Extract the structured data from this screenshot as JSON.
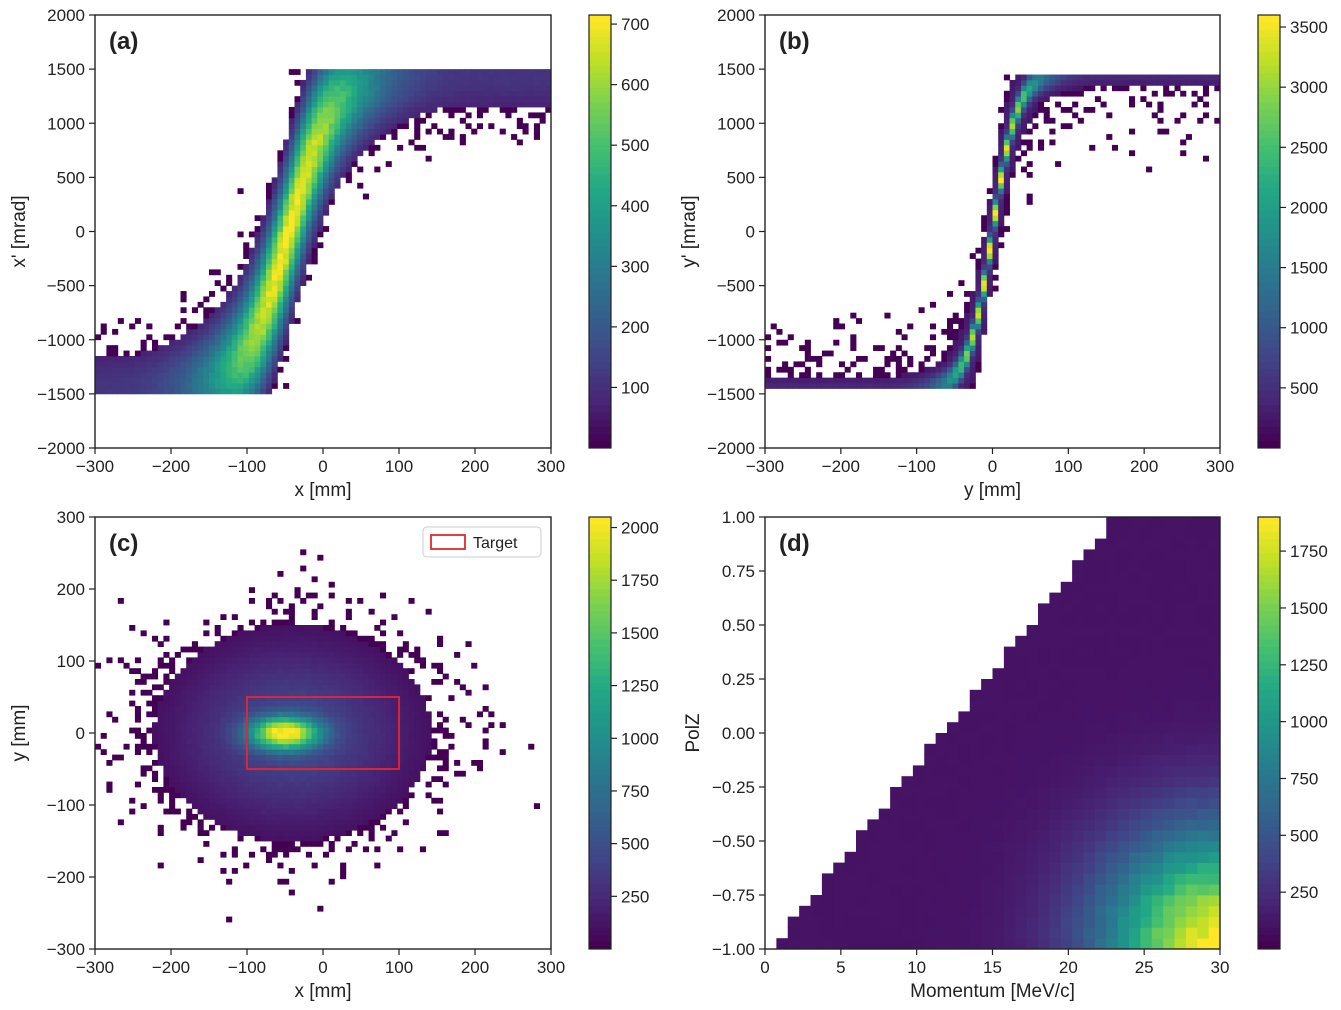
{
  "chart_data": [
    {
      "panel_label": "(a)",
      "type": "heatmap",
      "xlabel": "x [mm]",
      "ylabel": "x' [mrad]",
      "xlim": [
        -300,
        300
      ],
      "ylim": [
        -2000,
        2000
      ],
      "xticks": [
        -300,
        -200,
        -100,
        0,
        100,
        200,
        300
      ],
      "yticks": [
        -2000,
        -1500,
        -1000,
        -500,
        0,
        500,
        1000,
        1500,
        2000
      ],
      "xtick_labels": [
        "−300",
        "−200",
        "−100",
        "0",
        "100",
        "200",
        "300"
      ],
      "ytick_labels": [
        "−2000",
        "−1500",
        "−1000",
        "−500",
        "0",
        "500",
        "1000",
        "1500",
        "2000"
      ],
      "colorbar": {
        "min": 0,
        "max": 715,
        "ticks": [
          100,
          200,
          300,
          400,
          500,
          600,
          700
        ],
        "tick_labels": [
          "100",
          "200",
          "300",
          "400",
          "500",
          "600",
          "700"
        ]
      },
      "distribution": {
        "shape": "s-curve",
        "center": [
          -45,
          0
        ],
        "peak_count": 715,
        "x_sigma_mm": 45,
        "y_range_mrad": [
          -1450,
          1450
        ]
      }
    },
    {
      "panel_label": "(b)",
      "type": "heatmap",
      "xlabel": "y [mm]",
      "ylabel": "y' [mrad]",
      "xlim": [
        -300,
        300
      ],
      "ylim": [
        -2000,
        2000
      ],
      "xticks": [
        -300,
        -200,
        -100,
        0,
        100,
        200,
        300
      ],
      "yticks": [
        -2000,
        -1500,
        -1000,
        -500,
        0,
        500,
        1000,
        1500,
        2000
      ],
      "xtick_labels": [
        "−300",
        "−200",
        "−100",
        "0",
        "100",
        "200",
        "300"
      ],
      "ytick_labels": [
        "−2000",
        "−1500",
        "−1000",
        "−500",
        "0",
        "500",
        "1000",
        "1500",
        "2000"
      ],
      "colorbar": {
        "min": 0,
        "max": 3600,
        "ticks": [
          500,
          1000,
          1500,
          2000,
          2500,
          3000,
          3500
        ],
        "tick_labels": [
          "500",
          "1000",
          "1500",
          "2000",
          "2500",
          "3000",
          "3500"
        ]
      },
      "distribution": {
        "shape": "narrow s-curve",
        "center": [
          0,
          0
        ],
        "peak_count": 3600,
        "y_range_mrad": [
          -1450,
          1450
        ]
      }
    },
    {
      "panel_label": "(c)",
      "type": "heatmap",
      "xlabel": "x [mm]",
      "ylabel": "y [mm]",
      "xlim": [
        -300,
        300
      ],
      "ylim": [
        -300,
        300
      ],
      "xticks": [
        -300,
        -200,
        -100,
        0,
        100,
        200,
        300
      ],
      "yticks": [
        -300,
        -200,
        -100,
        0,
        100,
        200,
        300
      ],
      "xtick_labels": [
        "−300",
        "−200",
        "−100",
        "0",
        "100",
        "200",
        "300"
      ],
      "ytick_labels": [
        "−300",
        "−200",
        "−100",
        "0",
        "100",
        "200",
        "300"
      ],
      "colorbar": {
        "min": 0,
        "max": 2050,
        "ticks": [
          250,
          500,
          750,
          1000,
          1250,
          1500,
          1750,
          2000
        ],
        "tick_labels": [
          "250",
          "500",
          "750",
          "1000",
          "1250",
          "1500",
          "1750",
          "2000"
        ]
      },
      "distribution": {
        "shape": "gaussian blob",
        "center": [
          -50,
          0
        ],
        "peak_count": 2050,
        "sigma_mm": [
          50,
          45
        ]
      },
      "target": {
        "x": [
          -100,
          100
        ],
        "y": [
          -50,
          50
        ],
        "color": "#e8262b",
        "legend_label": "Target"
      }
    },
    {
      "panel_label": "(d)",
      "type": "heatmap",
      "xlabel": "Momentum [MeV/c]",
      "ylabel": "PolZ",
      "xlim": [
        0,
        30
      ],
      "ylim": [
        -1.0,
        1.0
      ],
      "xticks": [
        0,
        5,
        10,
        15,
        20,
        25,
        30
      ],
      "yticks": [
        -1.0,
        -0.75,
        -0.5,
        -0.25,
        0.0,
        0.25,
        0.5,
        0.75,
        1.0
      ],
      "xtick_labels": [
        "0",
        "5",
        "10",
        "15",
        "20",
        "25",
        "30"
      ],
      "ytick_labels": [
        "−1.00",
        "−0.75",
        "−0.50",
        "−0.25",
        "0.00",
        "0.25",
        "0.50",
        "0.75",
        "1.00"
      ],
      "colorbar": {
        "min": 0,
        "max": 1900,
        "ticks": [
          250,
          500,
          750,
          1000,
          1250,
          1500,
          1750
        ],
        "tick_labels": [
          "250",
          "500",
          "750",
          "1000",
          "1250",
          "1500",
          "1750"
        ]
      },
      "distribution": {
        "shape": "triangle edge",
        "peak_at": [
          29,
          -1.0
        ],
        "peak_count": 1900
      }
    }
  ],
  "colors": {
    "frame": "#222222",
    "tick_text": "#222222",
    "target": "#e8262b"
  }
}
